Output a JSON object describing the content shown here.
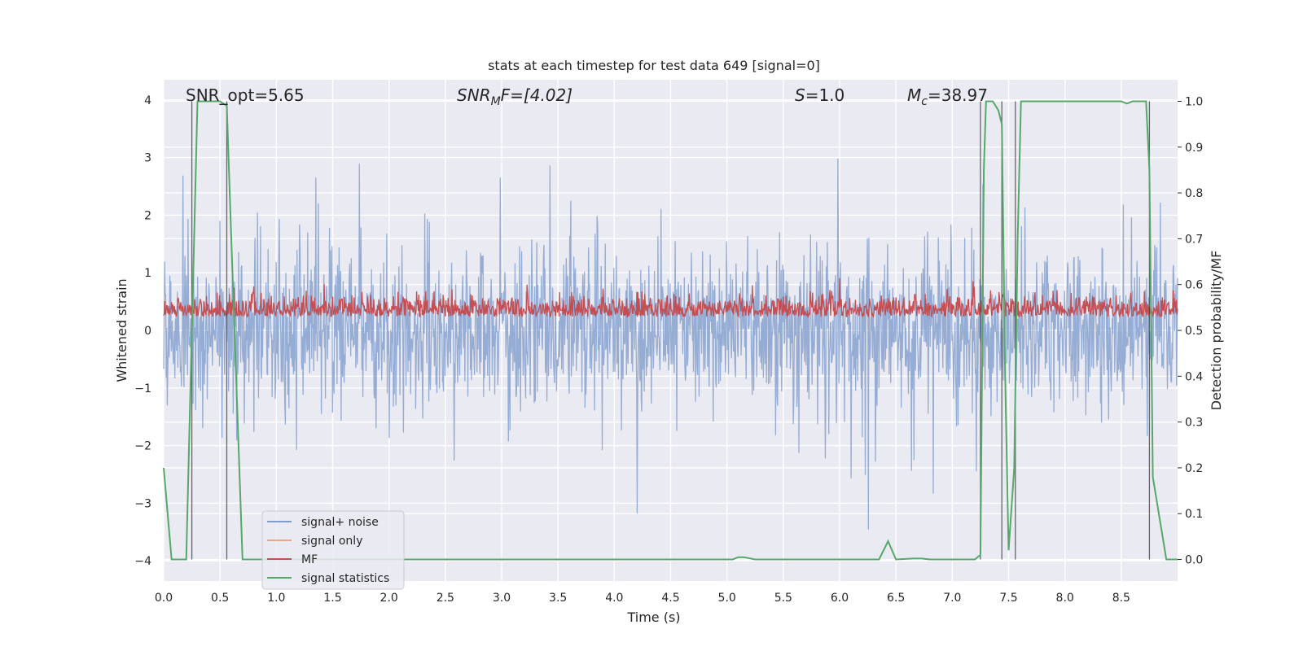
{
  "chart_data": {
    "type": "line",
    "title": "stats at each timestep for test data 649 [signal=0]",
    "xlabel": "Time (s)",
    "ylabel_left": "Whitened strain",
    "ylabel_right": "Detection probability/MF",
    "xlim": [
      0.0,
      9.0
    ],
    "ylim_left": [
      -4.35,
      4.35
    ],
    "ylim_right": [
      -0.047,
      1.047
    ],
    "x_ticks": [
      "0.0",
      "0.5",
      "1.0",
      "1.5",
      "2.0",
      "2.5",
      "3.0",
      "3.5",
      "4.0",
      "4.5",
      "5.0",
      "5.5",
      "6.0",
      "6.5",
      "7.0",
      "7.5",
      "8.0",
      "8.5"
    ],
    "y_ticks_left": [
      "4",
      "3",
      "2",
      "1",
      "0",
      "−1",
      "−2",
      "−3",
      "−4"
    ],
    "y_ticks_right": [
      "1.0",
      "0.9",
      "0.8",
      "0.7",
      "0.6",
      "0.5",
      "0.4",
      "0.3",
      "0.2",
      "0.1",
      "0.0"
    ],
    "grid": true,
    "legend_position": "lower-left",
    "annotations": {
      "snr_opt": "SNR_opt=5.65",
      "snr_mf_var": "SNR",
      "snr_mf_sub": "M",
      "snr_mf_rest": "F=[4.02]",
      "s_var": "S",
      "s_rest": "=1.0",
      "mc_var": "M",
      "mc_sub": "c",
      "mc_rest": "=38.97"
    },
    "series": [
      {
        "name": "signal+ noise",
        "color": "#7f9ccc",
        "description_level": "noise band roughly -2 to 2.5 with spikes to about +3.6 and -3.8"
      },
      {
        "name": "signal only",
        "color": "#e8a98a"
      },
      {
        "name": "MF",
        "color": "#c44e52",
        "range": [
          0.5,
          0.65
        ]
      },
      {
        "name": "signal statistics",
        "color": "#55a868",
        "x": [
          0.0,
          0.07,
          0.2,
          0.3,
          0.3,
          0.5,
          0.56,
          0.6,
          0.7,
          5.05,
          5.1,
          5.15,
          5.25,
          6.35,
          6.43,
          6.5,
          6.65,
          6.73,
          6.8,
          7.2,
          7.25,
          7.28,
          7.3,
          7.36,
          7.41,
          7.44,
          7.47,
          7.5,
          7.55,
          7.58,
          7.61,
          7.7,
          8.5,
          8.55,
          8.6,
          8.72,
          8.75,
          8.78,
          8.9,
          9.0
        ],
        "y": [
          0.2,
          0.0,
          0.0,
          1.0,
          1.0,
          1.0,
          0.99,
          0.7,
          0.0,
          0.0,
          0.005,
          0.005,
          0.0,
          0.0,
          0.04,
          0.0,
          0.002,
          0.002,
          0.0,
          0.0,
          0.01,
          0.85,
          1.0,
          1.0,
          0.98,
          0.95,
          0.4,
          0.02,
          0.2,
          0.7,
          1.0,
          1.0,
          1.0,
          0.995,
          1.0,
          1.0,
          0.85,
          0.18,
          0.0,
          0.0
        ]
      }
    ],
    "vlines": [
      0.25,
      0.56,
      7.25,
      7.44,
      7.56,
      8.75
    ]
  }
}
